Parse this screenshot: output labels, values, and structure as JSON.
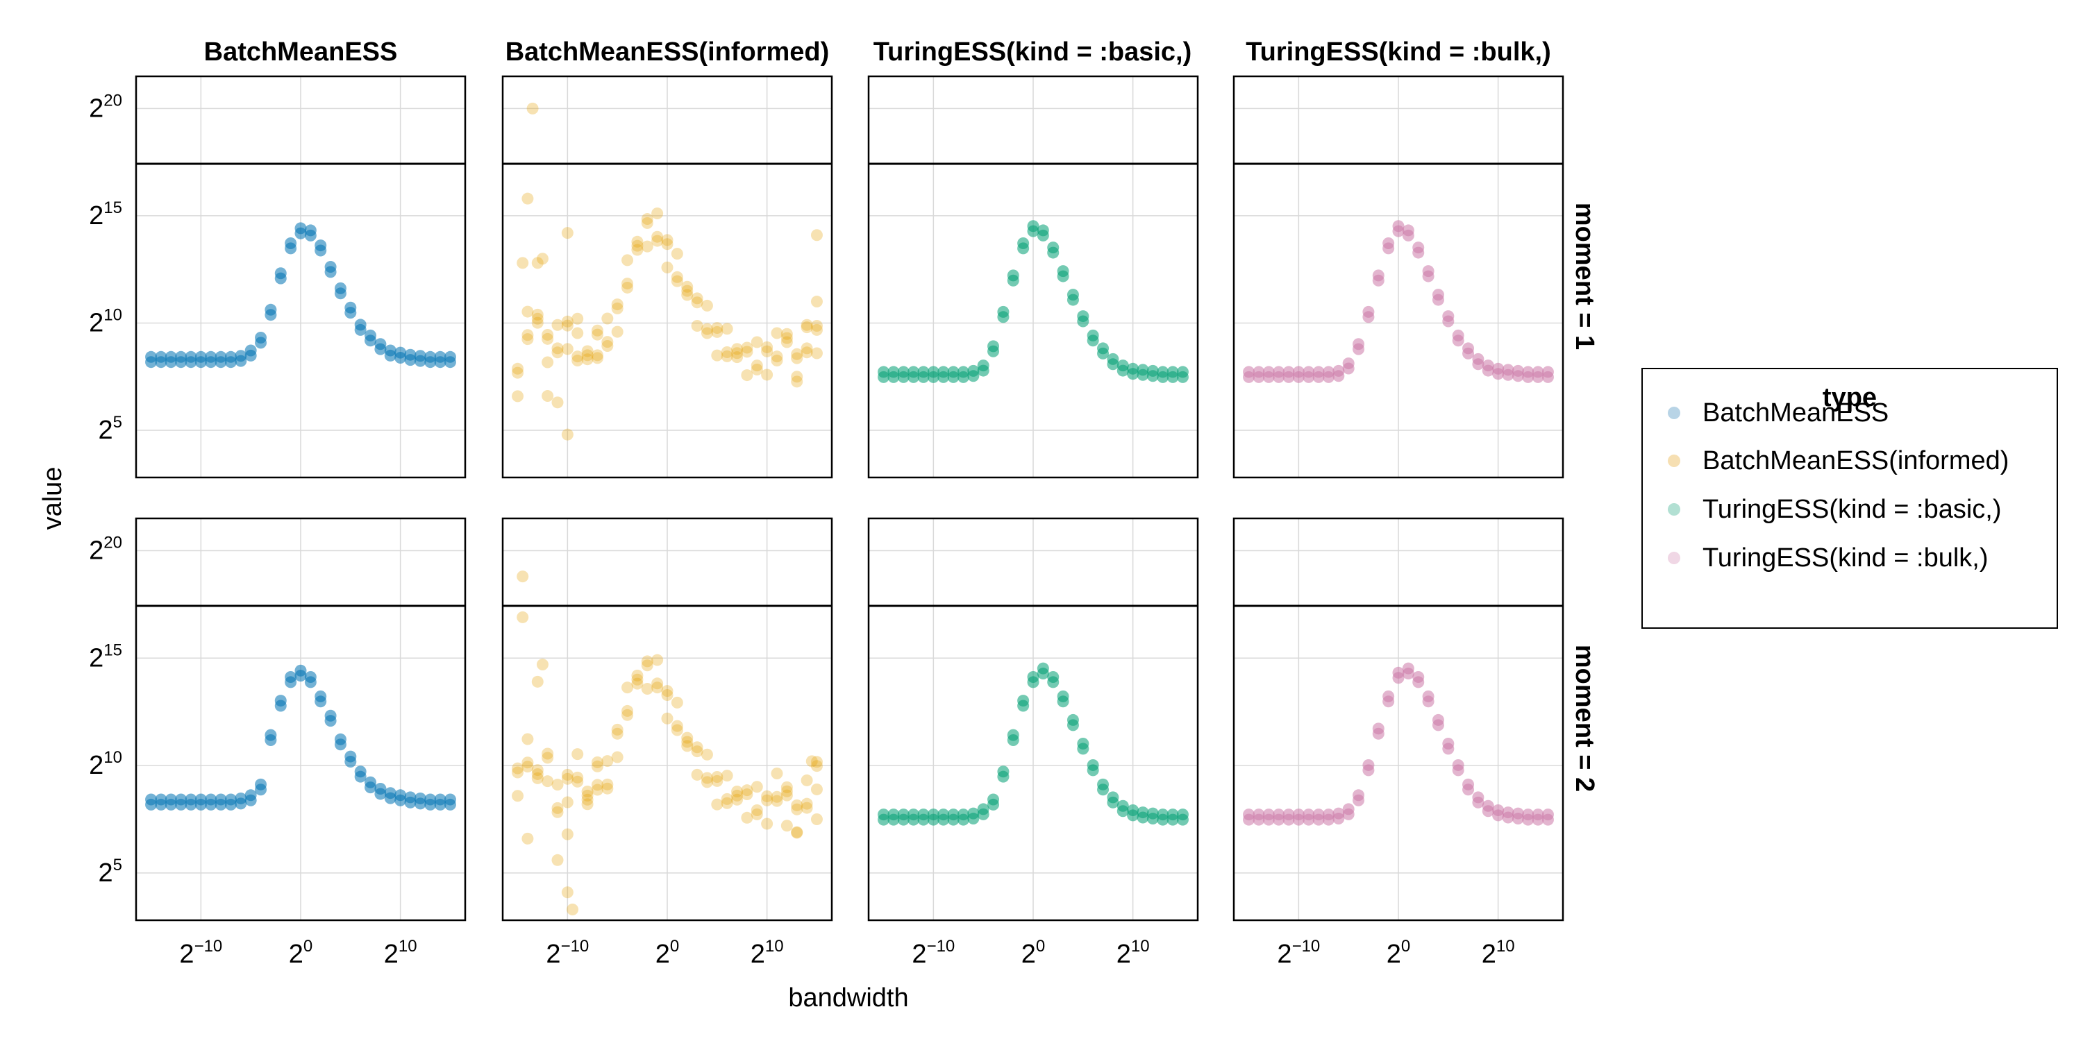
{
  "chart_data": {
    "type": "scatter",
    "title": "",
    "columns": [
      "BatchMeanESS",
      "BatchMeanESS(informed)",
      "TuringESS(kind = :basic,)",
      "TuringESS(kind = :bulk,)"
    ],
    "rows": [
      "moment = 1",
      "moment = 2"
    ],
    "xlabel": "bandwidth",
    "ylabel": "value",
    "x_scale": "log2",
    "y_scale": "log2",
    "x_ticks": [
      {
        "base": "2",
        "exp": "−10",
        "log2": -10
      },
      {
        "base": "2",
        "exp": "0",
        "log2": 0
      },
      {
        "base": "2",
        "exp": "10",
        "log2": 10
      }
    ],
    "y_ticks": [
      {
        "base": "2",
        "exp": "5",
        "log2": 5
      },
      {
        "base": "2",
        "exp": "10",
        "log2": 10
      },
      {
        "base": "2",
        "exp": "15",
        "log2": 15
      },
      {
        "base": "2",
        "exp": "20",
        "log2": 20
      }
    ],
    "x_range_log2": [
      -16.5,
      16.5
    ],
    "y_range_log2": [
      2.8,
      21.5
    ],
    "grid": true,
    "legend": {
      "title": "type",
      "position": "right",
      "entries": [
        "BatchMeanESS",
        "BatchMeanESS(informed)",
        "TuringESS(kind = :basic,)",
        "TuringESS(kind = :bulk,)"
      ]
    },
    "colors": {
      "BatchMeanESS": "#0072b2",
      "BatchMeanESS(informed)": "#e69f00",
      "TuringESS(kind = :basic,)": "#009e73",
      "TuringESS(kind = :bulk,)": "#cc79a7"
    },
    "x_log2": [
      -15,
      -14,
      -13,
      -12,
      -11,
      -10,
      -9,
      -8,
      -7,
      -6,
      -5,
      -4,
      -3,
      -2,
      -1,
      0,
      1,
      2,
      3,
      4,
      5,
      6,
      7,
      8,
      9,
      10,
      11,
      12,
      13,
      14,
      15
    ],
    "series": [
      {
        "name": "BatchMeanESS",
        "facet": "moment = 1",
        "y_log2": [
          8.3,
          8.3,
          8.3,
          8.3,
          8.3,
          8.3,
          8.3,
          8.3,
          8.3,
          8.35,
          8.6,
          9.2,
          10.5,
          12.2,
          13.6,
          14.3,
          14.2,
          13.5,
          12.5,
          11.5,
          10.6,
          9.8,
          9.3,
          8.9,
          8.6,
          8.5,
          8.4,
          8.35,
          8.3,
          8.3,
          8.3
        ]
      },
      {
        "name": "BatchMeanESS",
        "facet": "moment = 2",
        "y_log2": [
          8.3,
          8.3,
          8.3,
          8.3,
          8.3,
          8.3,
          8.3,
          8.3,
          8.3,
          8.35,
          8.5,
          9.0,
          11.3,
          12.9,
          14.0,
          14.3,
          14.0,
          13.1,
          12.2,
          11.1,
          10.3,
          9.6,
          9.1,
          8.8,
          8.6,
          8.5,
          8.4,
          8.35,
          8.3,
          8.3,
          8.3
        ]
      },
      {
        "name": "BatchMeanESS(informed)",
        "facet": "moment = 1",
        "y_log2": [
          7.5,
          9.8,
          10.2,
          8.9,
          9.0,
          9.7,
          8.8,
          8.5,
          9.1,
          9.3,
          10.5,
          12.2,
          13.6,
          14.3,
          14.2,
          13.5,
          12.5,
          11.5,
          10.6,
          9.9,
          9.4,
          9.0,
          8.6,
          8.3,
          8.2,
          8.5,
          8.8,
          9.3,
          8.0,
          9.0,
          9.5
        ]
      },
      {
        "name": "BatchMeanESS(informed)",
        "facet": "moment = 2",
        "y_log2": [
          9.5,
          10.5,
          9.6,
          10.0,
          8.2,
          9.2,
          9.8,
          8.6,
          9.6,
          9.3,
          11.3,
          12.9,
          14.0,
          14.3,
          14.0,
          13.1,
          12.2,
          11.1,
          10.3,
          9.6,
          9.1,
          8.8,
          8.6,
          8.3,
          8.1,
          8.2,
          8.9,
          8.8,
          7.6,
          8.4,
          9.8
        ]
      },
      {
        "name": "TuringESS(kind = :basic,)",
        "facet": "moment = 1",
        "y_log2": [
          7.6,
          7.6,
          7.6,
          7.6,
          7.6,
          7.6,
          7.6,
          7.6,
          7.6,
          7.65,
          7.9,
          8.8,
          10.4,
          12.1,
          13.6,
          14.4,
          14.2,
          13.4,
          12.3,
          11.2,
          10.2,
          9.3,
          8.7,
          8.2,
          7.9,
          7.75,
          7.7,
          7.65,
          7.6,
          7.6,
          7.6
        ]
      },
      {
        "name": "TuringESS(kind = :basic,)",
        "facet": "moment = 2",
        "y_log2": [
          7.6,
          7.6,
          7.6,
          7.6,
          7.6,
          7.6,
          7.6,
          7.6,
          7.6,
          7.65,
          7.85,
          8.3,
          9.6,
          11.3,
          12.9,
          14.0,
          14.4,
          14.0,
          13.1,
          12.0,
          10.9,
          9.9,
          9.0,
          8.4,
          8.0,
          7.8,
          7.7,
          7.65,
          7.6,
          7.6,
          7.6
        ]
      },
      {
        "name": "TuringESS(kind = :bulk,)",
        "facet": "moment = 1",
        "y_log2": [
          7.6,
          7.6,
          7.6,
          7.6,
          7.6,
          7.6,
          7.6,
          7.6,
          7.6,
          7.65,
          8.0,
          8.9,
          10.4,
          12.1,
          13.6,
          14.4,
          14.2,
          13.4,
          12.3,
          11.2,
          10.2,
          9.3,
          8.7,
          8.2,
          7.9,
          7.75,
          7.7,
          7.65,
          7.6,
          7.6,
          7.6
        ]
      },
      {
        "name": "TuringESS(kind = :bulk,)",
        "facet": "moment = 2",
        "y_log2": [
          7.6,
          7.6,
          7.6,
          7.6,
          7.6,
          7.6,
          7.6,
          7.6,
          7.6,
          7.65,
          7.85,
          8.5,
          9.9,
          11.6,
          13.1,
          14.2,
          14.4,
          14.0,
          13.1,
          12.0,
          10.9,
          9.9,
          9.0,
          8.4,
          8.0,
          7.8,
          7.7,
          7.65,
          7.6,
          7.6,
          7.6
        ]
      }
    ],
    "outliers": [
      {
        "name": "BatchMeanESS(informed)",
        "facet": "moment = 1",
        "x_log2": [
          -13.5,
          -14,
          -12.5,
          -10,
          -12,
          -13,
          -11,
          -10,
          -9
        ],
        "y_log2": [
          20.0,
          15.8,
          13.0,
          14.2,
          6.6,
          12.8,
          6.3,
          4.8,
          10.2
        ]
      },
      {
        "name": "BatchMeanESS(informed)",
        "facet": "moment = 2",
        "x_log2": [
          -14.5,
          -14.5,
          -12.5,
          -13,
          -9.5,
          -10,
          -10,
          -14,
          -11
        ],
        "y_log2": [
          18.8,
          16.9,
          14.7,
          13.9,
          3.3,
          4.1,
          6.8,
          6.6,
          5.6
        ]
      },
      {
        "name": "BatchMeanESS(informed)",
        "facet": "moment = 1",
        "x_log2": [
          15,
          15,
          -14.5,
          -7,
          13,
          14
        ],
        "y_log2": [
          14.1,
          11.0,
          12.8,
          8.5,
          7.5,
          9.8
        ]
      },
      {
        "name": "BatchMeanESS(informed)",
        "facet": "moment = 2",
        "x_log2": [
          14.5,
          13,
          15,
          12,
          -8,
          -7
        ],
        "y_log2": [
          10.2,
          6.9,
          7.5,
          7.2,
          8.2,
          9.1
        ]
      }
    ]
  }
}
